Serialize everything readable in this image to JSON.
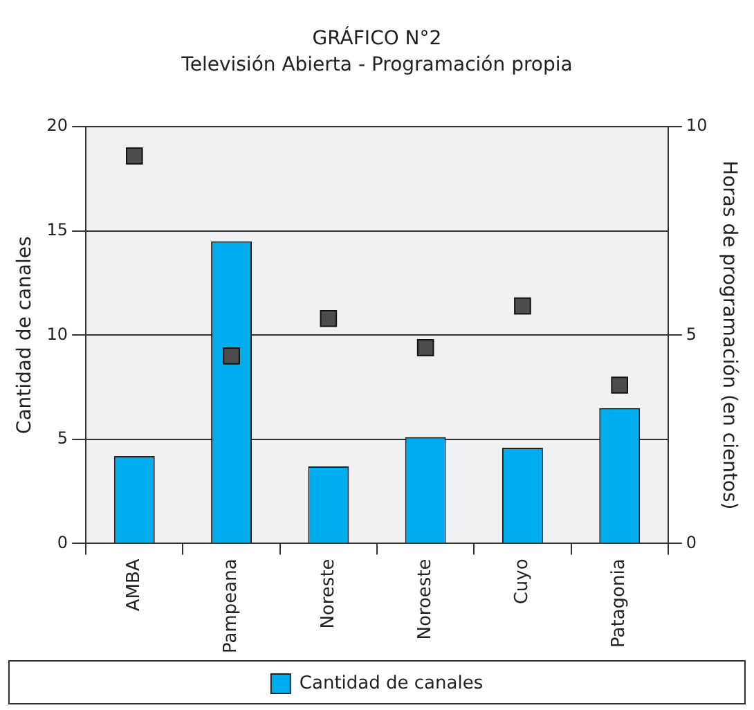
{
  "chart_data": {
    "type": "bar",
    "title": "GRÁFICO N°2",
    "subtitle": "Televisión Abierta - Programación propia",
    "ylabel": "Cantidad de canales",
    "y2label": "Horas de programación (en cientos)",
    "categories": [
      "AMBA",
      "Pampeana",
      "Noreste",
      "Noroeste",
      "Cuyo",
      "Patagonia"
    ],
    "series": [
      {
        "name": "Cantidad de canales",
        "color": "#00aeef",
        "values": [
          4.2,
          14.5,
          3.7,
          5.1,
          4.6,
          6.5
        ]
      },
      {
        "type": "scatter",
        "axis": "y2",
        "color": "#4d4d4d",
        "marker": "square",
        "values": [
          9.3,
          4.5,
          5.4,
          4.7,
          5.7,
          3.8
        ]
      }
    ],
    "ylim": [
      0,
      20
    ],
    "yticks": [
      0,
      5,
      10,
      15,
      20
    ],
    "y2lim": [
      0,
      10
    ],
    "y2ticks": [
      0,
      5,
      10
    ],
    "grid": "y",
    "legend": "bottom"
  }
}
